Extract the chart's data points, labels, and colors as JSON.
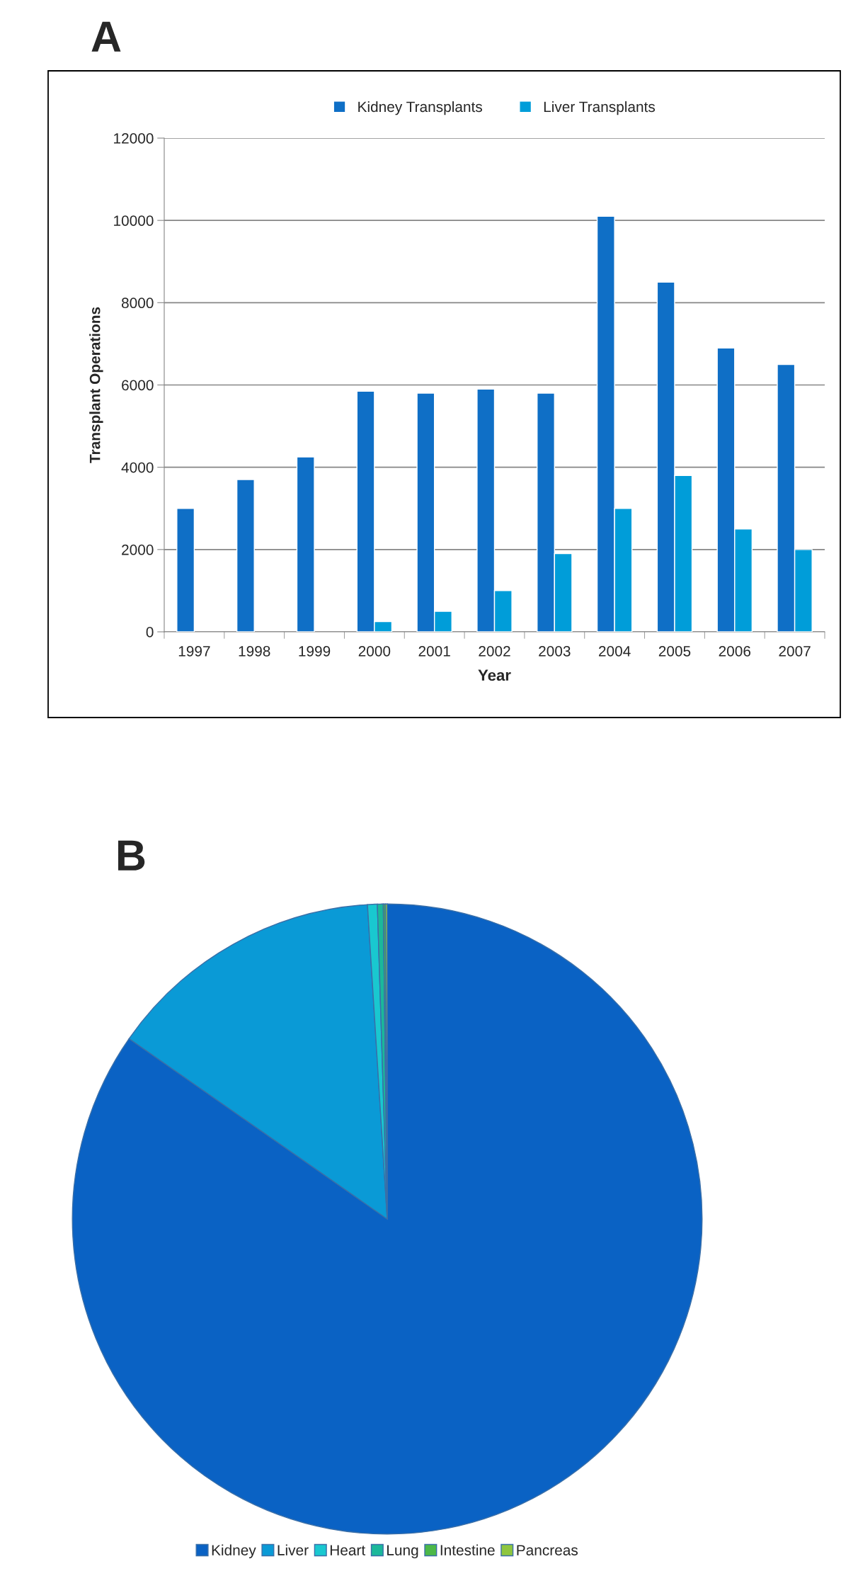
{
  "chart_data": [
    {
      "type": "bar",
      "title": "A",
      "xlabel": "Year",
      "ylabel": "Transplant Operations",
      "categories": [
        "1997",
        "1998",
        "1999",
        "2000",
        "2001",
        "2002",
        "2003",
        "2004",
        "2005",
        "2006",
        "2007"
      ],
      "series": [
        {
          "name": "Kidney Transplants",
          "color": "#0f6fc6",
          "values": [
            3000,
            3700,
            4250,
            5850,
            5800,
            5900,
            5800,
            10100,
            8500,
            6900,
            6500
          ]
        },
        {
          "name": "Liver Transplants",
          "color": "#009dd9",
          "values": [
            null,
            null,
            null,
            250,
            500,
            1000,
            1900,
            3000,
            3800,
            2500,
            2000
          ]
        }
      ],
      "ylim": [
        0,
        12000
      ],
      "yticks": [
        0,
        2000,
        4000,
        6000,
        8000,
        10000,
        12000
      ],
      "grid": "y",
      "legend": "top"
    },
    {
      "type": "pie",
      "title": "B",
      "categories": [
        "Kidney",
        "Liver",
        "Heart",
        "Lung",
        "Intestine",
        "Pancreas"
      ],
      "values": [
        84.7,
        14.3,
        0.5,
        0.3,
        0.1,
        0.1
      ],
      "colors": [
        "#0a62c4",
        "#0a9ad6",
        "#19c8d0",
        "#1bb89a",
        "#4cb848",
        "#8ec63f"
      ],
      "legend": "bottom"
    }
  ]
}
